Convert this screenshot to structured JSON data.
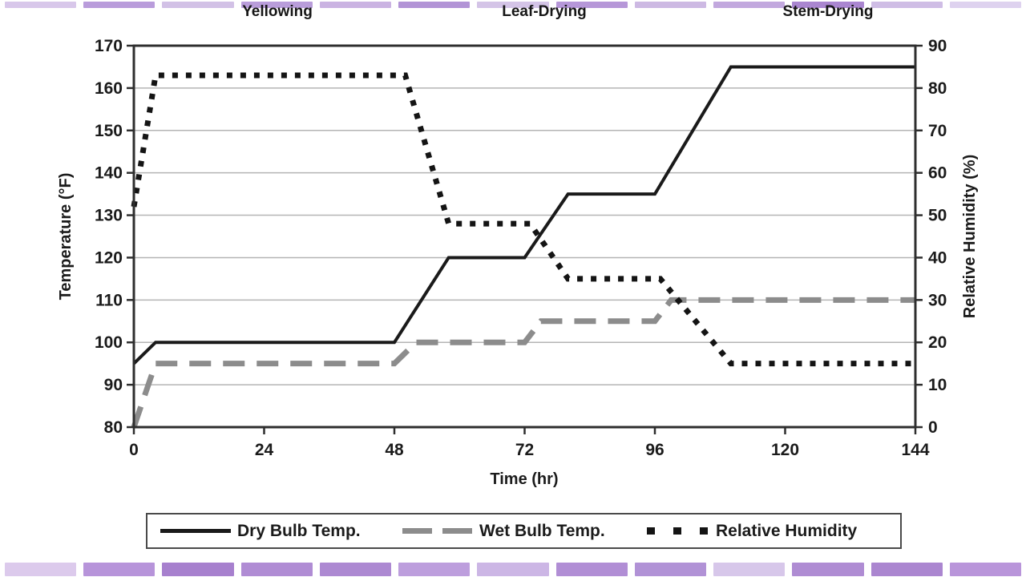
{
  "chart_data": {
    "type": "line",
    "phases": [
      {
        "label": "Yellowing"
      },
      {
        "label": "Leaf-Drying"
      },
      {
        "label": "Stem-Drying"
      }
    ],
    "x_axis": {
      "label": "Time (hr)",
      "min": 0,
      "max": 144,
      "ticks": [
        0,
        24,
        48,
        72,
        96,
        120,
        144
      ]
    },
    "y_left": {
      "label": "Temperature (°F)",
      "min": 80,
      "max": 170,
      "ticks": [
        170,
        160,
        150,
        140,
        130,
        120,
        110,
        100,
        90,
        80
      ]
    },
    "y_right": {
      "label": "Relative Humidity (%)",
      "min": 0,
      "max": 90,
      "ticks": [
        90,
        80,
        70,
        60,
        50,
        40,
        30,
        20,
        10,
        0
      ]
    },
    "grid": true,
    "legend_position": "bottom",
    "series": [
      {
        "name": "Dry Bulb Temp.",
        "axis": "left",
        "style": "solid",
        "color": "#1a1a1a",
        "points": [
          [
            0,
            95
          ],
          [
            4,
            100
          ],
          [
            48,
            100
          ],
          [
            58,
            120
          ],
          [
            72,
            120
          ],
          [
            80,
            135
          ],
          [
            96,
            135
          ],
          [
            110,
            165
          ],
          [
            144,
            165
          ]
        ]
      },
      {
        "name": "Wet Bulb Temp.",
        "axis": "left",
        "style": "dashed",
        "color": "#8c8c8c",
        "points": [
          [
            0,
            80
          ],
          [
            4,
            95
          ],
          [
            48,
            95
          ],
          [
            52,
            100
          ],
          [
            72,
            100
          ],
          [
            75,
            105
          ],
          [
            96,
            105
          ],
          [
            99,
            110
          ],
          [
            144,
            110
          ]
        ]
      },
      {
        "name": "Relative Humidity",
        "axis": "right",
        "style": "dotted",
        "color": "#141414",
        "points": [
          [
            0,
            52
          ],
          [
            4,
            83
          ],
          [
            50,
            83
          ],
          [
            58,
            48
          ],
          [
            73,
            48
          ],
          [
            80,
            35
          ],
          [
            97,
            35
          ],
          [
            110,
            15
          ],
          [
            144,
            15
          ]
        ]
      }
    ]
  },
  "colors": {
    "grid": "#b4b4b4",
    "axis": "#2e2e2e",
    "text": "#1b1b1b",
    "background": "#ffffff"
  },
  "decor": {
    "top_colors": [
      "#d8c7ea",
      "#b99cdb",
      "#d2c1e6",
      "#b99dda",
      "#cab3e2",
      "#b294d6",
      "#d4c4e7",
      "#b697d8",
      "#cdb9e3",
      "#c2a8de",
      "#aa86d0",
      "#cfbde5",
      "#ded2ef"
    ],
    "bottom_colors": [
      "#dccaec",
      "#b794da",
      "#a780ce",
      "#b08cd4",
      "#ad89d2",
      "#bd9edd",
      "#ccb6e5",
      "#b18ed5",
      "#b192d6",
      "#d7c7ea",
      "#af8cd3",
      "#ab86d0",
      "#b995da"
    ]
  }
}
